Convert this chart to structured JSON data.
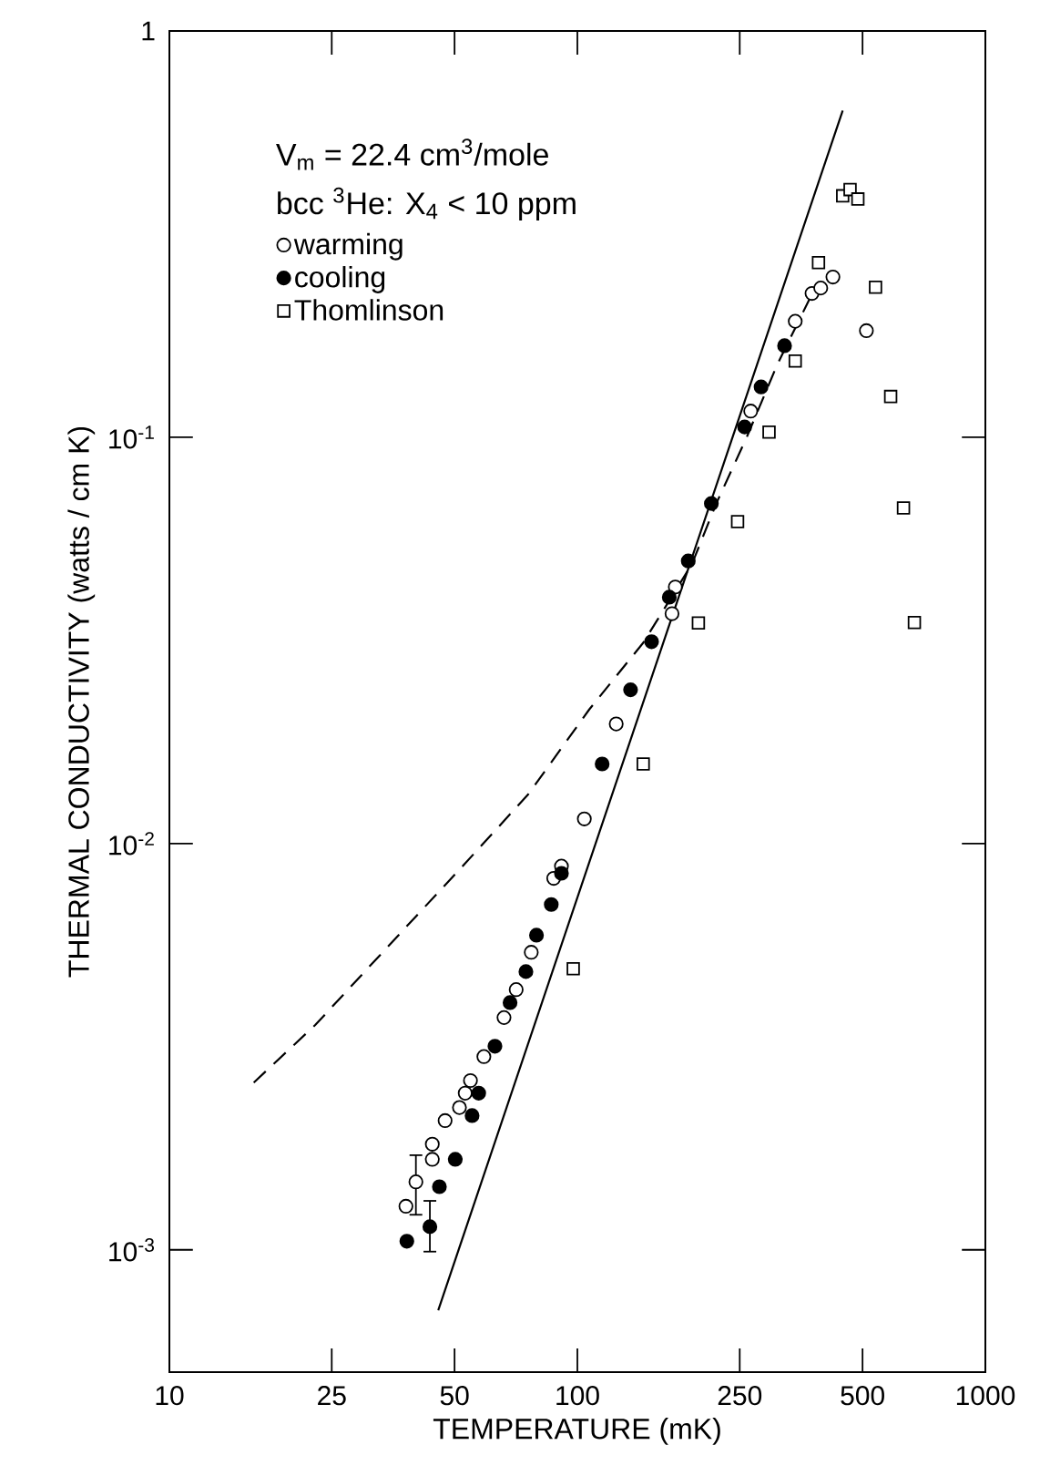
{
  "chart_data": {
    "type": "scatter",
    "xlabel": "TEMPERATURE (mK)",
    "ylabel": "THERMAL CONDUCTIVITY (watts / cm K)",
    "annotations": [
      "V$_{m}$ = 22.4 cm$^{3}$/mole",
      "bcc $^{3}$He: X$_{4}$ < 10 ppm"
    ],
    "log": "xy",
    "xlim": [
      10,
      1000
    ],
    "ylim": [
      0.0005,
      1
    ],
    "xticks": [
      10,
      25,
      50,
      100,
      250,
      500,
      1000
    ],
    "yticks": [
      {
        "value": 0.001,
        "label": "10$^{-3}$"
      },
      {
        "value": 0.01,
        "label": "10$^{-2}$"
      },
      {
        "value": 0.1,
        "label": "10$^{-1}$"
      },
      1
    ],
    "grid": false,
    "legend": "top left",
    "series": [
      {
        "name": "warming",
        "marker": "circle",
        "color": "#ffffff",
        "x": [
          38,
          40.2,
          44.1,
          44.1,
          47.4,
          51.4,
          53.1,
          54.7,
          59,
          66.1,
          70.8,
          77.1,
          87.5,
          91.4,
          104,
          124.5,
          170.6,
          173.8,
          266,
          342,
          376,
          395,
          423,
          511
        ],
        "values": [
          0.00128,
          0.00147,
          0.00167,
          0.00182,
          0.00208,
          0.00224,
          0.00243,
          0.00261,
          0.00299,
          0.00373,
          0.00437,
          0.0054,
          0.00821,
          0.0088,
          0.0115,
          0.0197,
          0.0368,
          0.0428,
          0.116,
          0.193,
          0.226,
          0.233,
          0.248,
          0.183
        ],
        "errors": [
          null,
          [
            0.00122,
            0.00171
          ],
          null,
          null,
          null,
          null,
          null,
          null,
          null,
          null,
          null,
          null,
          null,
          null,
          null,
          null,
          null,
          null,
          null,
          null,
          null,
          null,
          null,
          null
        ]
      },
      {
        "name": "cooling",
        "marker": "circle",
        "color": "#000000",
        "x": [
          38.2,
          43.5,
          45.9,
          50.2,
          55.2,
          57.3,
          62.8,
          68.4,
          74.8,
          79.4,
          86.3,
          91.4,
          115,
          135,
          152,
          168,
          187,
          213,
          257,
          282,
          322
        ],
        "values": [
          0.00105,
          0.00114,
          0.00143,
          0.00167,
          0.00214,
          0.00243,
          0.00317,
          0.00406,
          0.00484,
          0.00595,
          0.00708,
          0.00845,
          0.0157,
          0.0239,
          0.0314,
          0.0404,
          0.0496,
          0.0687,
          0.106,
          0.133,
          0.168
        ],
        "errors": [
          null,
          [
            0.00099,
            0.00132
          ],
          null,
          null,
          null,
          null,
          null,
          null,
          null,
          null,
          null,
          null,
          null,
          null,
          null,
          null,
          null,
          null,
          null,
          null,
          null
        ]
      },
      {
        "name": "Thomlinson",
        "marker": "square",
        "color": "#ffffff",
        "x": [
          97.7,
          145,
          198,
          247,
          295,
          342,
          390,
          447,
          466,
          487,
          538,
          586,
          630,
          670
        ],
        "values": [
          0.00492,
          0.0157,
          0.0349,
          0.062,
          0.103,
          0.154,
          0.269,
          0.393,
          0.407,
          0.386,
          0.234,
          0.126,
          0.067,
          0.035
        ]
      },
      {
        "type": "line",
        "line_style": "solid",
        "color": "#000000",
        "x": [
          45.6,
          447
        ],
        "values": [
          0.00071,
          0.637
        ]
      },
      {
        "type": "line",
        "line_style": "dashed",
        "color": "#000000",
        "x": [
          16.1,
          22.8,
          34.4,
          52,
          75.7,
          107,
          145,
          191,
          219,
          260,
          309,
          379
        ],
        "values": [
          0.00258,
          0.00358,
          0.00559,
          0.00874,
          0.0132,
          0.0214,
          0.0312,
          0.0488,
          0.0687,
          0.1,
          0.151,
          0.229
        ]
      }
    ]
  }
}
